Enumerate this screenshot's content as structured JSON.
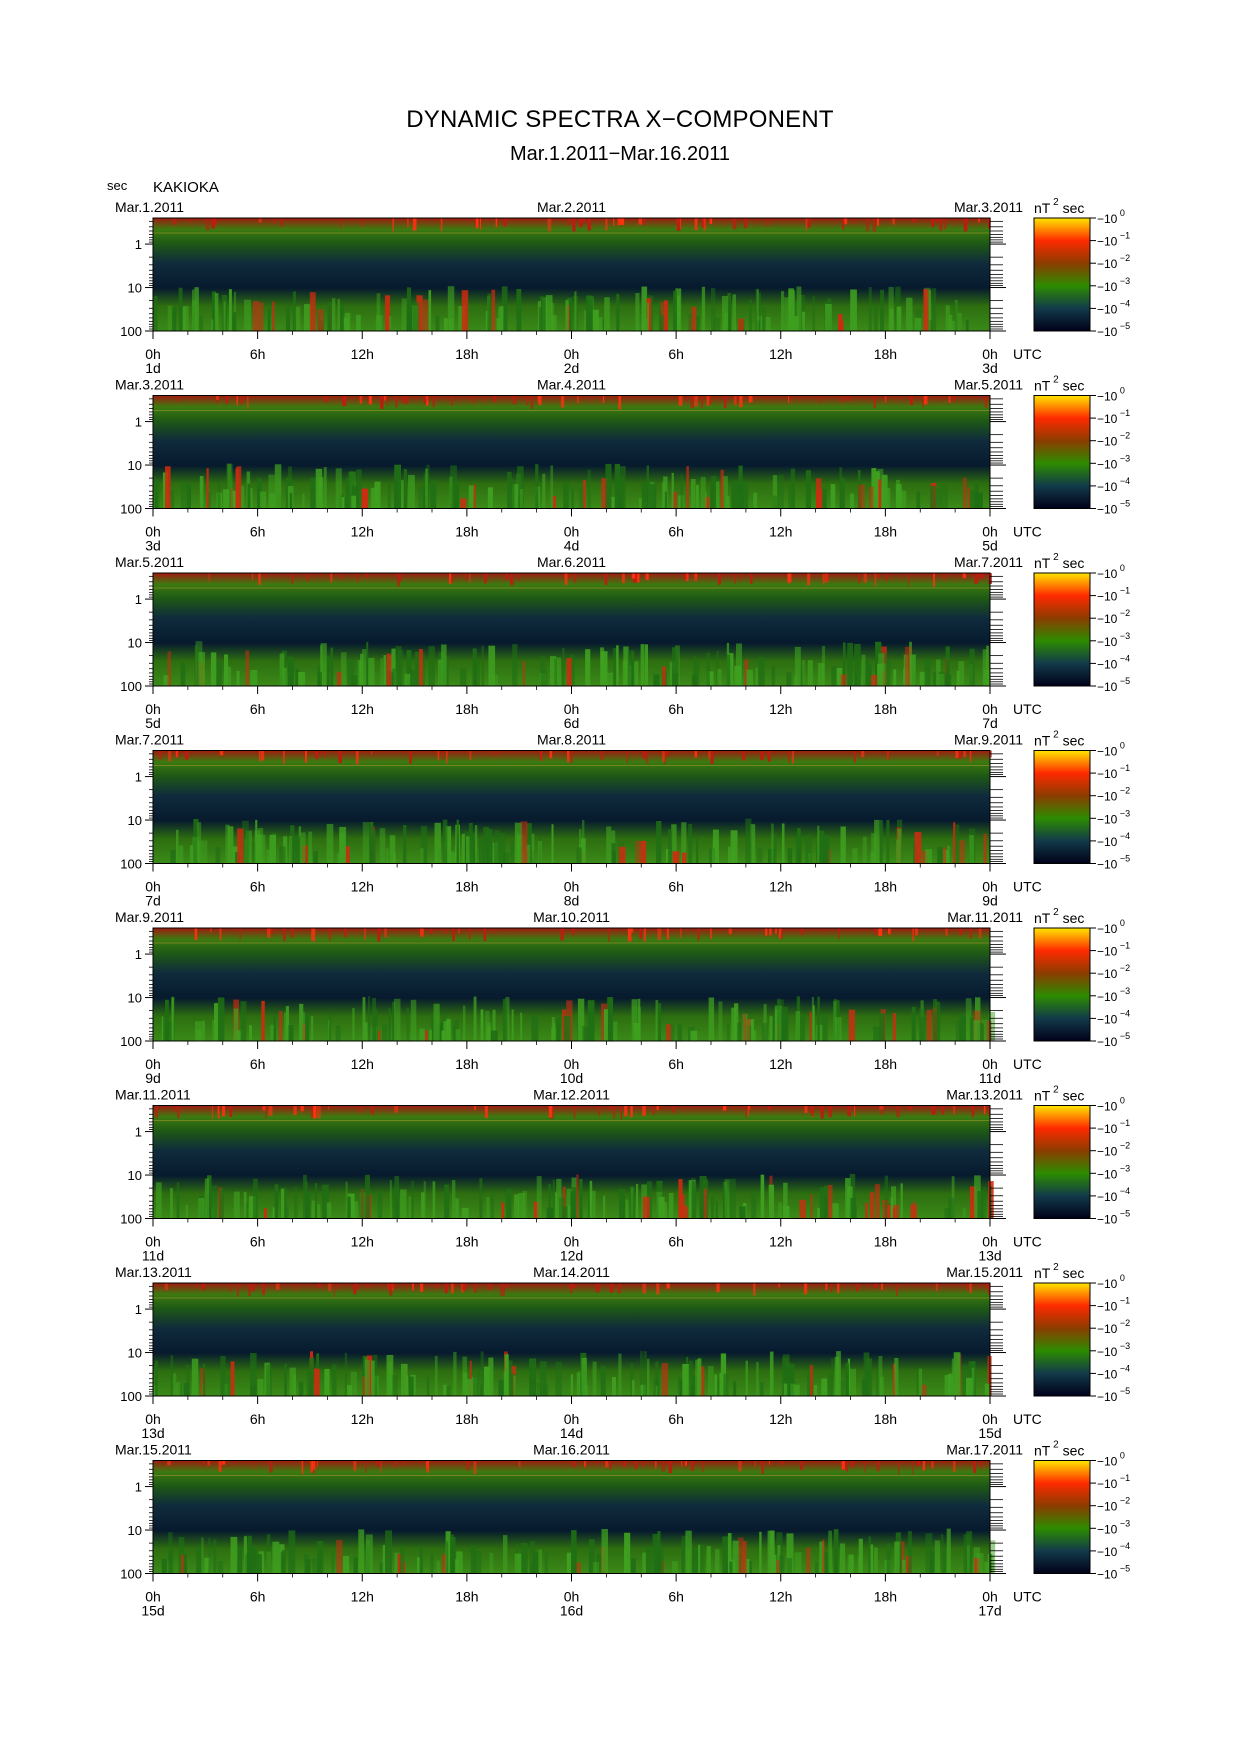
{
  "header": {
    "title": "DYNAMIC SPECTRA X−COMPONENT",
    "subtitle": "Mar.1.2011−Mar.16.2011",
    "y_unit": "sec",
    "station": "KAKIOKA"
  },
  "colorbar": {
    "unit_base": "nT",
    "unit_exp": "2",
    "unit_suffix": "sec",
    "ticks": [
      {
        "base": "10",
        "exp": "0"
      },
      {
        "base": "10",
        "exp": "−1"
      },
      {
        "base": "10",
        "exp": "−2"
      },
      {
        "base": "10",
        "exp": "−3"
      },
      {
        "base": "10",
        "exp": "−4"
      },
      {
        "base": "10",
        "exp": "−5"
      }
    ],
    "colors": [
      "#ffe600",
      "#ff2a00",
      "#8c3c00",
      "#2d8c00",
      "#123a4a",
      "#000018"
    ]
  },
  "chart_data": {
    "type": "heatmap",
    "description_axis_y": "period (sec), log scale, ticks 1 / 10 / 100",
    "y_ticks": [
      "1",
      "10",
      "100"
    ],
    "x_tick_labels": [
      "0h",
      "6h",
      "12h",
      "18h",
      "0h",
      "6h",
      "12h",
      "18h",
      "0h"
    ],
    "x_unit": "UTC",
    "color_scale": "log, 10^-5 to 10^0 nT^2 sec",
    "panels": [
      {
        "left_date": "Mar.1.2011",
        "mid_date": "Mar.2.2011",
        "right_date": "Mar.3.2011",
        "day_labels": [
          "1d",
          "2d",
          "3d"
        ]
      },
      {
        "left_date": "Mar.3.2011",
        "mid_date": "Mar.4.2011",
        "right_date": "Mar.5.2011",
        "day_labels": [
          "3d",
          "4d",
          "5d"
        ]
      },
      {
        "left_date": "Mar.5.2011",
        "mid_date": "Mar.6.2011",
        "right_date": "Mar.7.2011",
        "day_labels": [
          "5d",
          "6d",
          "7d"
        ]
      },
      {
        "left_date": "Mar.7.2011",
        "mid_date": "Mar.8.2011",
        "right_date": "Mar.9.2011",
        "day_labels": [
          "7d",
          "8d",
          "9d"
        ]
      },
      {
        "left_date": "Mar.9.2011",
        "mid_date": "Mar.10.2011",
        "right_date": "Mar.11.2011",
        "day_labels": [
          "9d",
          "10d",
          "11d"
        ]
      },
      {
        "left_date": "Mar.11.2011",
        "mid_date": "Mar.12.2011",
        "right_date": "Mar.13.2011",
        "day_labels": [
          "11d",
          "12d",
          "13d"
        ]
      },
      {
        "left_date": "Mar.13.2011",
        "mid_date": "Mar.14.2011",
        "right_date": "Mar.15.2011",
        "day_labels": [
          "13d",
          "14d",
          "15d"
        ]
      },
      {
        "left_date": "Mar.15.2011",
        "mid_date": "Mar.16.2011",
        "right_date": "Mar.17.2011",
        "day_labels": [
          "15d",
          "16d",
          "17d"
        ]
      }
    ]
  }
}
